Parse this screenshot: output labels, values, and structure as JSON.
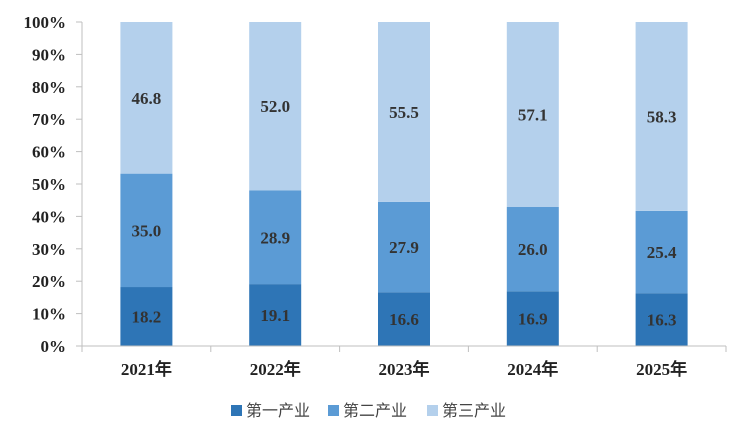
{
  "chart_data": {
    "type": "bar",
    "stacked": true,
    "percent_stacked": true,
    "categories": [
      "2021年",
      "2022年",
      "2023年",
      "2024年",
      "2025年"
    ],
    "series": [
      {
        "name": "第一产业",
        "values": [
          18.2,
          19.1,
          16.6,
          16.9,
          16.3
        ],
        "color": "#2e75b6"
      },
      {
        "name": "第二产业",
        "values": [
          35.0,
          28.9,
          27.9,
          26.0,
          25.4
        ],
        "color": "#5b9bd5"
      },
      {
        "name": "第三产业",
        "values": [
          46.8,
          52.0,
          55.5,
          57.1,
          58.3
        ],
        "color": "#b4d0ec"
      }
    ],
    "ylim": [
      0,
      100
    ],
    "yticks": [
      "0%",
      "10%",
      "20%",
      "30%",
      "40%",
      "50%",
      "60%",
      "70%",
      "80%",
      "90%",
      "100%"
    ],
    "grid": false,
    "legend_position": "bottom"
  }
}
